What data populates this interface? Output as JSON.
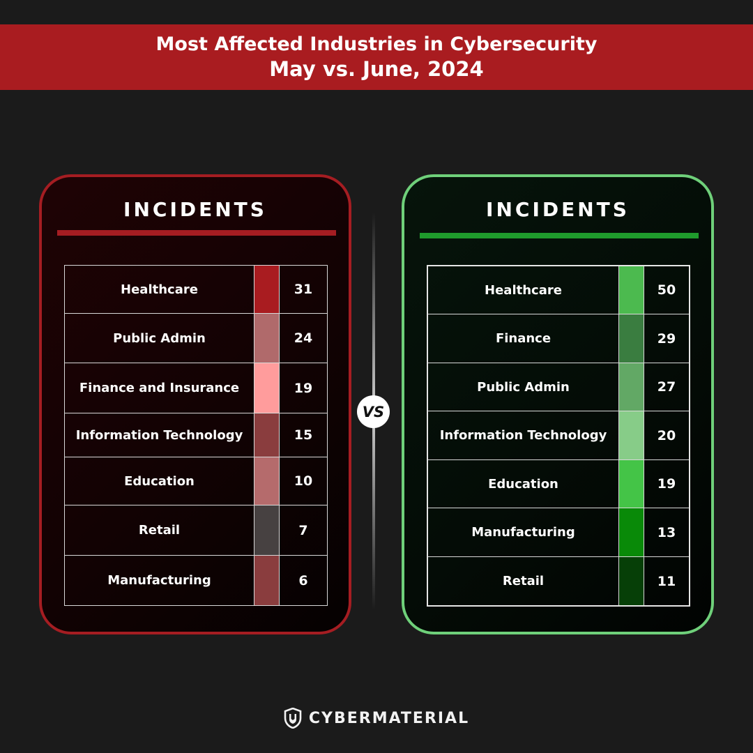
{
  "header": {
    "title_line1": "Most Affected Industries in Cybersecurity",
    "title_line2": "May vs. June, 2024"
  },
  "vs_label": "VS",
  "brand": {
    "name": "CYBERMATERIAL",
    "icon": "shield-logo-icon"
  },
  "chart_data": [
    {
      "type": "table",
      "heading": "INCIDENTS",
      "accent_color": "#a51d22",
      "categories": [
        "Healthcare",
        "Public Admin",
        "Finance and Insurance",
        "Information Technology",
        "Education",
        "Retail",
        "Manufacturing"
      ],
      "values": [
        31,
        24,
        19,
        15,
        10,
        7,
        6
      ],
      "swatch_colors": [
        "#a91c20",
        "#b06a6b",
        "#ff9c9c",
        "#8a3d3e",
        "#b56b6c",
        "#474141",
        "#8a3d3e"
      ]
    },
    {
      "type": "table",
      "heading": "INCIDENTS",
      "accent_color": "#6fd07a",
      "categories": [
        "Healthcare",
        "Finance",
        "Public Admin",
        "Information Technology",
        "Education",
        "Manufacturing",
        "Retail"
      ],
      "values": [
        50,
        29,
        27,
        20,
        19,
        13,
        11
      ],
      "swatch_colors": [
        "#4cba4f",
        "#3a7d40",
        "#62a865",
        "#87cc88",
        "#44c447",
        "#098a08",
        "#063f07"
      ]
    }
  ]
}
